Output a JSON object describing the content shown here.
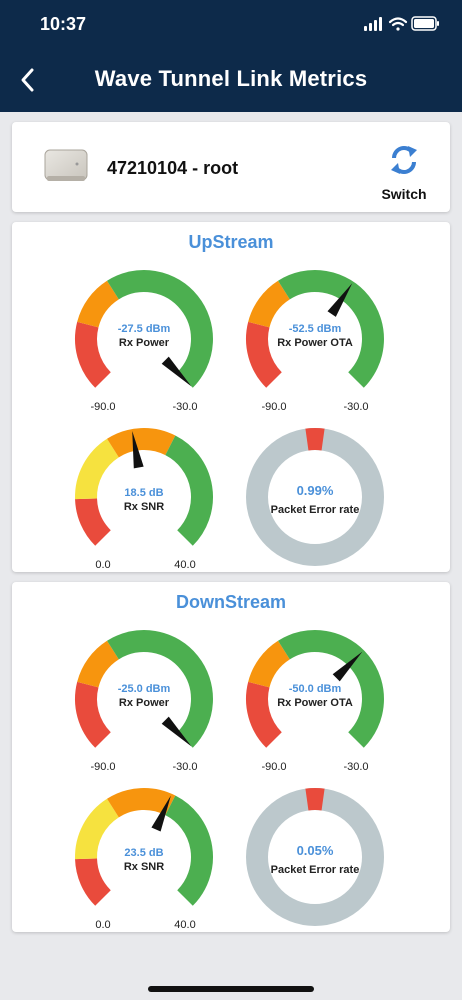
{
  "status": {
    "time": "10:37"
  },
  "header": {
    "title": "Wave Tunnel Link Metrics"
  },
  "device": {
    "name": "47210104 - root",
    "switch_label": "Switch"
  },
  "colors": {
    "red": "#e94b3c",
    "orange": "#f7950e",
    "yellow": "#f6e23f",
    "green": "#4caf50",
    "gray": "#bcc8cc",
    "accent": "#4a90d9",
    "header_bg": "#0d2a4a"
  },
  "upstream": {
    "title": "UpStream",
    "rx_power": {
      "value": -27.5,
      "text": "-27.5 dBm",
      "label": "Rx Power",
      "min": -90,
      "max": -30,
      "min_label": "-90.0",
      "max_label": "-30.0"
    },
    "rx_power_ota": {
      "value": -52.5,
      "text": "-52.5 dBm",
      "label": "Rx Power OTA",
      "min": -90,
      "max": -30,
      "min_label": "-90.0",
      "max_label": "-30.0"
    },
    "rx_snr": {
      "value": 18.5,
      "text": "18.5 dB",
      "label": "Rx SNR",
      "min": 0,
      "max": 40,
      "min_label": "0.0",
      "max_label": "40.0"
    },
    "per": {
      "value": 0.99,
      "text": "0.99%",
      "label": "Packet Error rate"
    }
  },
  "downstream": {
    "title": "DownStream",
    "rx_power": {
      "value": -25.0,
      "text": "-25.0 dBm",
      "label": "Rx Power",
      "min": -90,
      "max": -30,
      "min_label": "-90.0",
      "max_label": "-30.0"
    },
    "rx_power_ota": {
      "value": -50.0,
      "text": "-50.0 dBm",
      "label": "Rx Power OTA",
      "min": -90,
      "max": -30,
      "min_label": "-90.0",
      "max_label": "-30.0"
    },
    "rx_snr": {
      "value": 23.5,
      "text": "23.5 dB",
      "label": "Rx SNR",
      "min": 0,
      "max": 40,
      "min_label": "0.0",
      "max_label": "40.0"
    },
    "per": {
      "value": 0.05,
      "text": "0.05%",
      "label": "Packet Error rate"
    }
  }
}
